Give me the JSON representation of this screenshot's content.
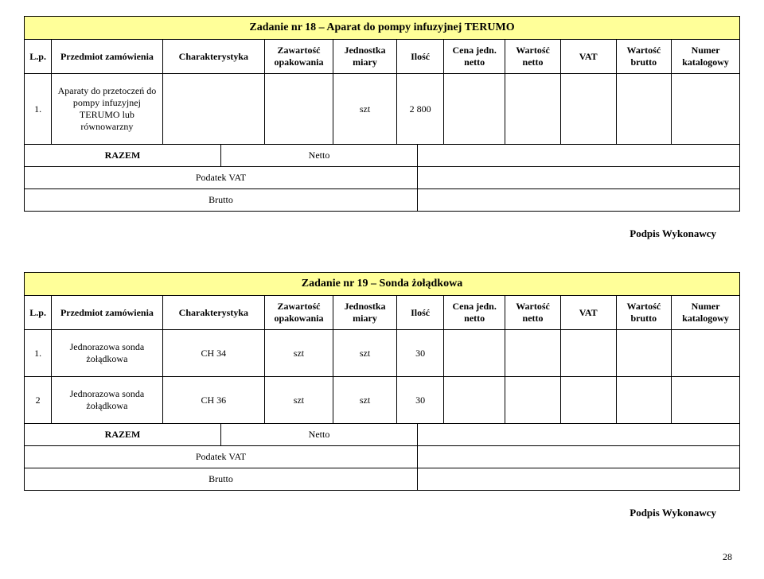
{
  "headers": {
    "lp": "L.p.",
    "przedmiot": "Przedmiot zamówienia",
    "char": "Charakterystyka",
    "zaw": "Zawartość opakowania",
    "jedn": "Jednostka miary",
    "ilosc": "Ilość",
    "cena": "Cena jedn. netto",
    "wn": "Wartość netto",
    "vat": "VAT",
    "wb": "Wartość brutto",
    "num": "Numer katalogowy"
  },
  "task18": {
    "title": "Zadanie nr 18 – Aparat do pompy infuzyjnej TERUMO",
    "rows": [
      {
        "lp": "1.",
        "przedmiot": "Aparaty do przetoczeń do pompy infuzyjnej TERUMO lub równowarzny",
        "char": "",
        "zaw": "",
        "jedn": "szt",
        "ilosc": "2 800",
        "cena": "",
        "wn": "",
        "vat": "",
        "wb": "",
        "num": ""
      }
    ]
  },
  "task19": {
    "title": "Zadanie nr 19 – Sonda żołądkowa",
    "rows": [
      {
        "lp": "1.",
        "przedmiot": "Jednorazowa sonda żołądkowa",
        "char": "CH 34",
        "zaw": "szt",
        "jedn": "szt",
        "ilosc": "30",
        "cena": "",
        "wn": "",
        "vat": "",
        "wb": "",
        "num": ""
      },
      {
        "lp": "2",
        "przedmiot": "Jednorazowa sonda żołądkowa",
        "char": "CH 36",
        "zaw": "szt",
        "jedn": "szt",
        "ilosc": "30",
        "cena": "",
        "wn": "",
        "vat": "",
        "wb": "",
        "num": ""
      }
    ]
  },
  "summary": {
    "razem": "RAZEM",
    "netto": "Netto",
    "podatek": "Podatek VAT",
    "brutto": "Brutto"
  },
  "signature": "Podpis Wykonawcy",
  "page": "28"
}
